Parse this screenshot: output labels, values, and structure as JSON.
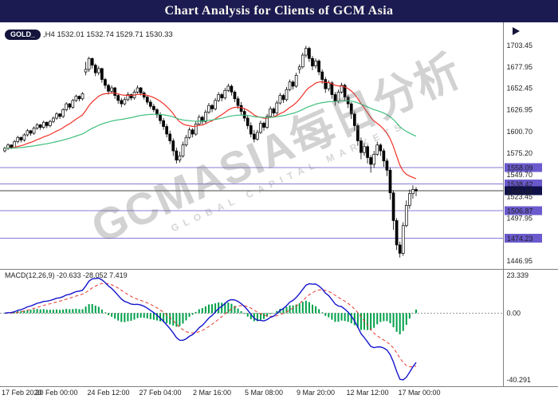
{
  "banner": {
    "title": "Chart Analysis for Clients of GCM Asia"
  },
  "quote_bar": {
    "symbol": "GOLD_",
    "timeframe_and_ohlc": ",H4 1532.01 1532.74 1529.71 1530.33"
  },
  "watermark": {
    "main": "GCMASIA每日分析",
    "sub": "GLOBAL CAPITAL MARKETS"
  },
  "colors": {
    "banner_bg": "#1b1b52",
    "bull_candle": "#ffffff",
    "bear_candle": "#000000",
    "candle_outline": "#000000",
    "level_line": "#8878d8",
    "level_label_bg": "#6a5acd",
    "current_price_line": "#444444",
    "current_price_bg": "#10104a",
    "macd_main": "#1515cc",
    "macd_signal": "#e8362d",
    "macd_hist": "#00a04a",
    "axis_text": "#222222",
    "frame_line": "#808080"
  },
  "chart_data": {
    "type": "candlestick",
    "title": "GOLD_ H4 with MACD(12,26,9)",
    "symbol": "GOLD_",
    "timeframe": "H4",
    "ohlc_display": {
      "open": "1532.01",
      "high": "1532.74",
      "low": "1529.71",
      "close": "1530.33"
    },
    "price_axis_labels": [
      1703.45,
      1677.95,
      1652.45,
      1626.95,
      1600.7,
      1575.2,
      1549.7,
      1523.45,
      1497.95,
      1446.95
    ],
    "level_lines": [
      {
        "label": "1558.09",
        "value": 1558.09,
        "current": false
      },
      {
        "label": "1538.42",
        "value": 1538.42,
        "current": false
      },
      {
        "label": "1530.33",
        "value": 1530.33,
        "current": true
      },
      {
        "label": "1506.87",
        "value": 1506.87,
        "current": false
      },
      {
        "label": "1474.23",
        "value": 1474.23,
        "current": false
      }
    ],
    "time_axis_labels": [
      "17 Feb 2020",
      "20 Feb 00:00",
      "24 Feb 12:00",
      "27 Feb 04:00",
      "2 Mar 16:00",
      "5 Mar 08:00",
      "9 Mar 20:00",
      "12 Mar 12:00",
      "17 Mar 00:00"
    ],
    "moving_averages": [
      {
        "name": "fast-ma-red",
        "period": 20,
        "color": "#f03228"
      },
      {
        "name": "slow-ma-green",
        "period": 72,
        "color": "#3fbf7f"
      }
    ],
    "macd": {
      "label": "MACD(12,26,9)",
      "values_text": "-20.633 -28.052 7.419",
      "params": {
        "fast": 12,
        "slow": 26,
        "signal": 9
      },
      "axis_labels": [
        "23.339",
        "0.00",
        "-40.291"
      ]
    },
    "candles": [
      [
        1578,
        1583,
        1576,
        1581
      ],
      [
        1581,
        1587,
        1579,
        1585
      ],
      [
        1585,
        1586,
        1580,
        1582
      ],
      [
        1582,
        1591,
        1581,
        1589
      ],
      [
        1589,
        1596,
        1587,
        1594
      ],
      [
        1594,
        1595,
        1588,
        1591
      ],
      [
        1591,
        1599,
        1589,
        1597
      ],
      [
        1597,
        1604,
        1595,
        1602
      ],
      [
        1602,
        1603,
        1596,
        1599
      ],
      [
        1599,
        1607,
        1597,
        1605
      ],
      [
        1605,
        1611,
        1603,
        1609
      ],
      [
        1609,
        1610,
        1603,
        1606
      ],
      [
        1606,
        1614,
        1604,
        1612
      ],
      [
        1612,
        1613,
        1605,
        1608
      ],
      [
        1608,
        1615,
        1606,
        1613
      ],
      [
        1613,
        1619,
        1611,
        1617
      ],
      [
        1617,
        1624,
        1615,
        1622
      ],
      [
        1622,
        1623,
        1616,
        1619
      ],
      [
        1619,
        1629,
        1617,
        1627
      ],
      [
        1627,
        1636,
        1625,
        1634
      ],
      [
        1634,
        1635,
        1627,
        1630
      ],
      [
        1630,
        1640,
        1628,
        1638
      ],
      [
        1638,
        1645,
        1636,
        1643
      ],
      [
        1643,
        1644,
        1637,
        1640
      ],
      [
        1640,
        1648,
        1638,
        1646
      ],
      [
        1672,
        1684,
        1668,
        1675
      ],
      [
        1675,
        1690,
        1672,
        1688
      ],
      [
        1688,
        1689,
        1676,
        1680
      ],
      [
        1680,
        1682,
        1667,
        1671
      ],
      [
        1671,
        1679,
        1668,
        1676
      ],
      [
        1676,
        1677,
        1659,
        1663
      ],
      [
        1663,
        1665,
        1652,
        1656
      ],
      [
        1656,
        1658,
        1645,
        1649
      ],
      [
        1649,
        1656,
        1646,
        1653
      ],
      [
        1653,
        1654,
        1640,
        1644
      ],
      [
        1644,
        1646,
        1634,
        1638
      ],
      [
        1638,
        1641,
        1630,
        1634
      ],
      [
        1634,
        1642,
        1632,
        1639
      ],
      [
        1639,
        1648,
        1637,
        1645
      ],
      [
        1645,
        1646,
        1638,
        1641
      ],
      [
        1641,
        1651,
        1639,
        1648
      ],
      [
        1648,
        1656,
        1646,
        1653
      ],
      [
        1653,
        1654,
        1644,
        1647
      ],
      [
        1647,
        1649,
        1639,
        1642
      ],
      [
        1642,
        1644,
        1633,
        1636
      ],
      [
        1636,
        1639,
        1628,
        1631
      ],
      [
        1631,
        1634,
        1624,
        1627
      ],
      [
        1627,
        1629,
        1617,
        1621
      ],
      [
        1621,
        1624,
        1610,
        1614
      ],
      [
        1614,
        1617,
        1603,
        1607
      ],
      [
        1607,
        1610,
        1594,
        1598
      ],
      [
        1598,
        1602,
        1586,
        1590
      ],
      [
        1590,
        1593,
        1572,
        1578
      ],
      [
        1578,
        1582,
        1563,
        1567
      ],
      [
        1567,
        1577,
        1564,
        1572
      ],
      [
        1572,
        1589,
        1570,
        1585
      ],
      [
        1585,
        1597,
        1583,
        1594
      ],
      [
        1594,
        1606,
        1592,
        1603
      ],
      [
        1603,
        1605,
        1594,
        1598
      ],
      [
        1598,
        1613,
        1596,
        1610
      ],
      [
        1610,
        1621,
        1608,
        1618
      ],
      [
        1618,
        1620,
        1609,
        1613
      ],
      [
        1613,
        1627,
        1611,
        1624
      ],
      [
        1624,
        1635,
        1622,
        1632
      ],
      [
        1632,
        1634,
        1624,
        1628
      ],
      [
        1628,
        1641,
        1626,
        1638
      ],
      [
        1638,
        1648,
        1636,
        1645
      ],
      [
        1645,
        1647,
        1637,
        1641
      ],
      [
        1641,
        1653,
        1639,
        1650
      ],
      [
        1650,
        1658,
        1648,
        1655
      ],
      [
        1655,
        1657,
        1644,
        1648
      ],
      [
        1648,
        1650,
        1636,
        1640
      ],
      [
        1640,
        1643,
        1628,
        1632
      ],
      [
        1632,
        1636,
        1621,
        1625
      ],
      [
        1625,
        1628,
        1613,
        1617
      ],
      [
        1617,
        1620,
        1604,
        1608
      ],
      [
        1608,
        1612,
        1594,
        1598
      ],
      [
        1598,
        1603,
        1588,
        1592
      ],
      [
        1592,
        1603,
        1590,
        1600
      ],
      [
        1600,
        1614,
        1598,
        1611
      ],
      [
        1611,
        1613,
        1602,
        1606
      ],
      [
        1606,
        1622,
        1604,
        1619
      ],
      [
        1619,
        1631,
        1617,
        1628
      ],
      [
        1628,
        1630,
        1619,
        1623
      ],
      [
        1623,
        1638,
        1621,
        1635
      ],
      [
        1635,
        1647,
        1633,
        1644
      ],
      [
        1644,
        1646,
        1635,
        1639
      ],
      [
        1639,
        1654,
        1637,
        1651
      ],
      [
        1651,
        1663,
        1649,
        1660
      ],
      [
        1660,
        1662,
        1651,
        1655
      ],
      [
        1655,
        1671,
        1653,
        1668
      ],
      [
        1675,
        1681,
        1670,
        1678
      ],
      [
        1678,
        1695,
        1676,
        1692
      ],
      [
        1692,
        1703,
        1689,
        1700
      ],
      [
        1700,
        1702,
        1684,
        1688
      ],
      [
        1688,
        1691,
        1674,
        1679
      ],
      [
        1679,
        1688,
        1676,
        1685
      ],
      [
        1685,
        1687,
        1668,
        1672
      ],
      [
        1672,
        1675,
        1658,
        1663
      ],
      [
        1663,
        1666,
        1647,
        1652
      ],
      [
        1652,
        1662,
        1649,
        1659
      ],
      [
        1659,
        1661,
        1640,
        1645
      ],
      [
        1645,
        1648,
        1632,
        1637
      ],
      [
        1637,
        1651,
        1635,
        1648
      ],
      [
        1648,
        1659,
        1646,
        1656
      ],
      [
        1656,
        1658,
        1638,
        1642
      ],
      [
        1642,
        1645,
        1629,
        1634
      ],
      [
        1634,
        1636,
        1616,
        1622
      ],
      [
        1622,
        1625,
        1602,
        1608
      ],
      [
        1608,
        1611,
        1584,
        1590
      ],
      [
        1590,
        1594,
        1568,
        1576
      ],
      [
        1576,
        1587,
        1572,
        1583
      ],
      [
        1583,
        1585,
        1563,
        1570
      ],
      [
        1570,
        1573,
        1552,
        1562
      ],
      [
        1562,
        1578,
        1558,
        1574
      ],
      [
        1574,
        1589,
        1572,
        1585
      ],
      [
        1585,
        1587,
        1572,
        1578
      ],
      [
        1578,
        1581,
        1559,
        1566
      ],
      [
        1566,
        1569,
        1548,
        1555
      ],
      [
        1555,
        1558,
        1520,
        1528
      ],
      [
        1528,
        1531,
        1484,
        1495
      ],
      [
        1495,
        1498,
        1460,
        1466
      ],
      [
        1466,
        1470,
        1451,
        1456
      ],
      [
        1456,
        1493,
        1453,
        1489
      ],
      [
        1489,
        1519,
        1487,
        1513
      ],
      [
        1513,
        1532,
        1509,
        1527
      ],
      [
        1527,
        1537,
        1521,
        1532
      ],
      [
        1532,
        1535,
        1524,
        1530.3
      ]
    ]
  }
}
